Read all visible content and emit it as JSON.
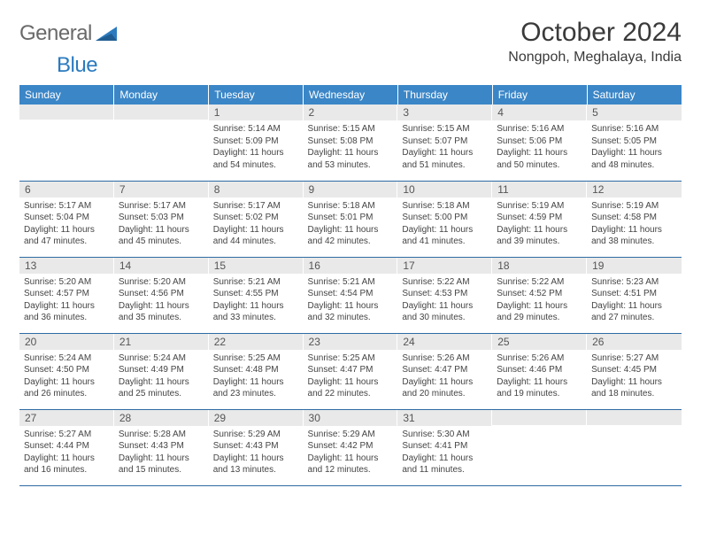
{
  "logo": {
    "text_gray": "General",
    "text_blue": "Blue"
  },
  "title": "October 2024",
  "location": "Nongpoh, Meghalaya, India",
  "colors": {
    "header_bg": "#3b86c7",
    "header_text": "#ffffff",
    "daynum_bg": "#e9e9e9",
    "row_border": "#2e6ba3",
    "body_text": "#3a3a3a",
    "logo_gray": "#6a6a6a",
    "logo_blue": "#2b7bbf"
  },
  "day_headers": [
    "Sunday",
    "Monday",
    "Tuesday",
    "Wednesday",
    "Thursday",
    "Friday",
    "Saturday"
  ],
  "weeks": [
    [
      {
        "n": "",
        "sr": "",
        "ss": "",
        "dl": ""
      },
      {
        "n": "",
        "sr": "",
        "ss": "",
        "dl": ""
      },
      {
        "n": "1",
        "sr": "5:14 AM",
        "ss": "5:09 PM",
        "dl": "11 hours and 54 minutes."
      },
      {
        "n": "2",
        "sr": "5:15 AM",
        "ss": "5:08 PM",
        "dl": "11 hours and 53 minutes."
      },
      {
        "n": "3",
        "sr": "5:15 AM",
        "ss": "5:07 PM",
        "dl": "11 hours and 51 minutes."
      },
      {
        "n": "4",
        "sr": "5:16 AM",
        "ss": "5:06 PM",
        "dl": "11 hours and 50 minutes."
      },
      {
        "n": "5",
        "sr": "5:16 AM",
        "ss": "5:05 PM",
        "dl": "11 hours and 48 minutes."
      }
    ],
    [
      {
        "n": "6",
        "sr": "5:17 AM",
        "ss": "5:04 PM",
        "dl": "11 hours and 47 minutes."
      },
      {
        "n": "7",
        "sr": "5:17 AM",
        "ss": "5:03 PM",
        "dl": "11 hours and 45 minutes."
      },
      {
        "n": "8",
        "sr": "5:17 AM",
        "ss": "5:02 PM",
        "dl": "11 hours and 44 minutes."
      },
      {
        "n": "9",
        "sr": "5:18 AM",
        "ss": "5:01 PM",
        "dl": "11 hours and 42 minutes."
      },
      {
        "n": "10",
        "sr": "5:18 AM",
        "ss": "5:00 PM",
        "dl": "11 hours and 41 minutes."
      },
      {
        "n": "11",
        "sr": "5:19 AM",
        "ss": "4:59 PM",
        "dl": "11 hours and 39 minutes."
      },
      {
        "n": "12",
        "sr": "5:19 AM",
        "ss": "4:58 PM",
        "dl": "11 hours and 38 minutes."
      }
    ],
    [
      {
        "n": "13",
        "sr": "5:20 AM",
        "ss": "4:57 PM",
        "dl": "11 hours and 36 minutes."
      },
      {
        "n": "14",
        "sr": "5:20 AM",
        "ss": "4:56 PM",
        "dl": "11 hours and 35 minutes."
      },
      {
        "n": "15",
        "sr": "5:21 AM",
        "ss": "4:55 PM",
        "dl": "11 hours and 33 minutes."
      },
      {
        "n": "16",
        "sr": "5:21 AM",
        "ss": "4:54 PM",
        "dl": "11 hours and 32 minutes."
      },
      {
        "n": "17",
        "sr": "5:22 AM",
        "ss": "4:53 PM",
        "dl": "11 hours and 30 minutes."
      },
      {
        "n": "18",
        "sr": "5:22 AM",
        "ss": "4:52 PM",
        "dl": "11 hours and 29 minutes."
      },
      {
        "n": "19",
        "sr": "5:23 AM",
        "ss": "4:51 PM",
        "dl": "11 hours and 27 minutes."
      }
    ],
    [
      {
        "n": "20",
        "sr": "5:24 AM",
        "ss": "4:50 PM",
        "dl": "11 hours and 26 minutes."
      },
      {
        "n": "21",
        "sr": "5:24 AM",
        "ss": "4:49 PM",
        "dl": "11 hours and 25 minutes."
      },
      {
        "n": "22",
        "sr": "5:25 AM",
        "ss": "4:48 PM",
        "dl": "11 hours and 23 minutes."
      },
      {
        "n": "23",
        "sr": "5:25 AM",
        "ss": "4:47 PM",
        "dl": "11 hours and 22 minutes."
      },
      {
        "n": "24",
        "sr": "5:26 AM",
        "ss": "4:47 PM",
        "dl": "11 hours and 20 minutes."
      },
      {
        "n": "25",
        "sr": "5:26 AM",
        "ss": "4:46 PM",
        "dl": "11 hours and 19 minutes."
      },
      {
        "n": "26",
        "sr": "5:27 AM",
        "ss": "4:45 PM",
        "dl": "11 hours and 18 minutes."
      }
    ],
    [
      {
        "n": "27",
        "sr": "5:27 AM",
        "ss": "4:44 PM",
        "dl": "11 hours and 16 minutes."
      },
      {
        "n": "28",
        "sr": "5:28 AM",
        "ss": "4:43 PM",
        "dl": "11 hours and 15 minutes."
      },
      {
        "n": "29",
        "sr": "5:29 AM",
        "ss": "4:43 PM",
        "dl": "11 hours and 13 minutes."
      },
      {
        "n": "30",
        "sr": "5:29 AM",
        "ss": "4:42 PM",
        "dl": "11 hours and 12 minutes."
      },
      {
        "n": "31",
        "sr": "5:30 AM",
        "ss": "4:41 PM",
        "dl": "11 hours and 11 minutes."
      },
      {
        "n": "",
        "sr": "",
        "ss": "",
        "dl": ""
      },
      {
        "n": "",
        "sr": "",
        "ss": "",
        "dl": ""
      }
    ]
  ],
  "labels": {
    "sunrise": "Sunrise:",
    "sunset": "Sunset:",
    "daylight": "Daylight:"
  }
}
